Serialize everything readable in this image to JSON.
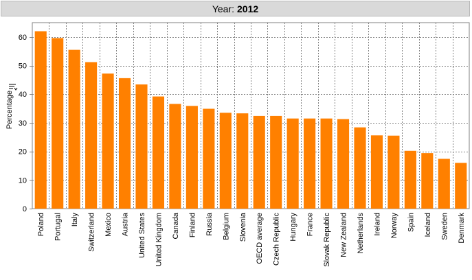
{
  "header": {
    "label": "Year:",
    "year": "2012"
  },
  "chart_data": {
    "type": "bar",
    "ylabel": "Percentage",
    "ylim": [
      0,
      65
    ],
    "yticks": [
      0,
      10,
      20,
      30,
      40,
      50,
      60
    ],
    "grid": true,
    "bar_color": "#ff8000",
    "categories": [
      "Poland",
      "Portugal",
      "Italy",
      "Switzerland",
      "Mexico",
      "Austria",
      "United States",
      "United Kingdom",
      "Canada",
      "Finland",
      "Russia",
      "Belgium",
      "Slovenia",
      "OECD average",
      "Czech Republic",
      "Hungary",
      "France",
      "Slovak Republic",
      "New Zealand",
      "Netherlands",
      "Ireland",
      "Norway",
      "Spain",
      "Iceland",
      "Sweden",
      "Denmark"
    ],
    "values": [
      62.0,
      59.6,
      55.5,
      51.2,
      47.2,
      45.6,
      43.4,
      39.2,
      36.6,
      35.9,
      34.9,
      33.5,
      33.3,
      32.4,
      32.4,
      31.5,
      31.5,
      31.5,
      31.3,
      28.4,
      25.6,
      25.5,
      20.2,
      19.4,
      17.4,
      16.0
    ]
  }
}
